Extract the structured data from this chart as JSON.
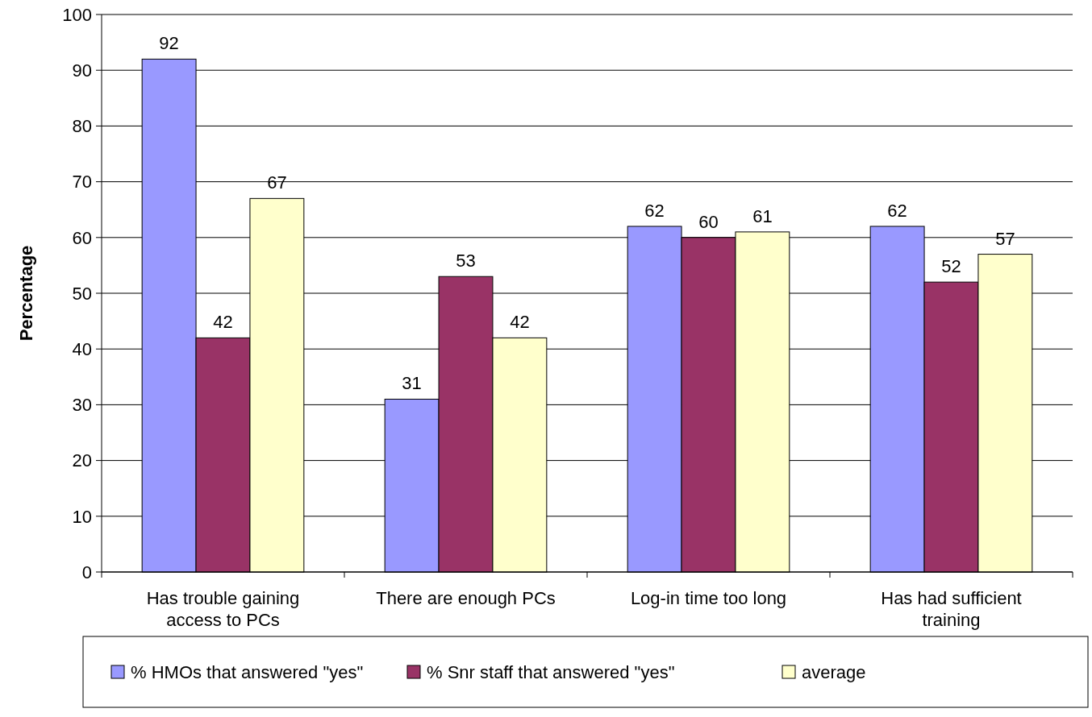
{
  "chart_data": {
    "type": "bar",
    "ylabel": "Percentage",
    "categories": [
      "Has trouble gaining access to PCs",
      "There are enough PCs",
      "Log-in time too long",
      "Has had sufficient training"
    ],
    "series": [
      {
        "name": "% HMOs that answered \"yes\"",
        "color": "#9999ff",
        "values": [
          92,
          31,
          62,
          62
        ]
      },
      {
        "name": "% Snr staff that answered \"yes\"",
        "color": "#993366",
        "values": [
          42,
          53,
          60,
          52
        ]
      },
      {
        "name": "average",
        "color": "#ffffcc",
        "values": [
          67,
          42,
          61,
          57
        ]
      }
    ],
    "ylim": [
      0,
      100
    ],
    "yticks": [
      0,
      10,
      20,
      30,
      40,
      50,
      60,
      70,
      80,
      90,
      100
    ],
    "grid": "y",
    "legend": "bottom",
    "data_labels": true
  }
}
